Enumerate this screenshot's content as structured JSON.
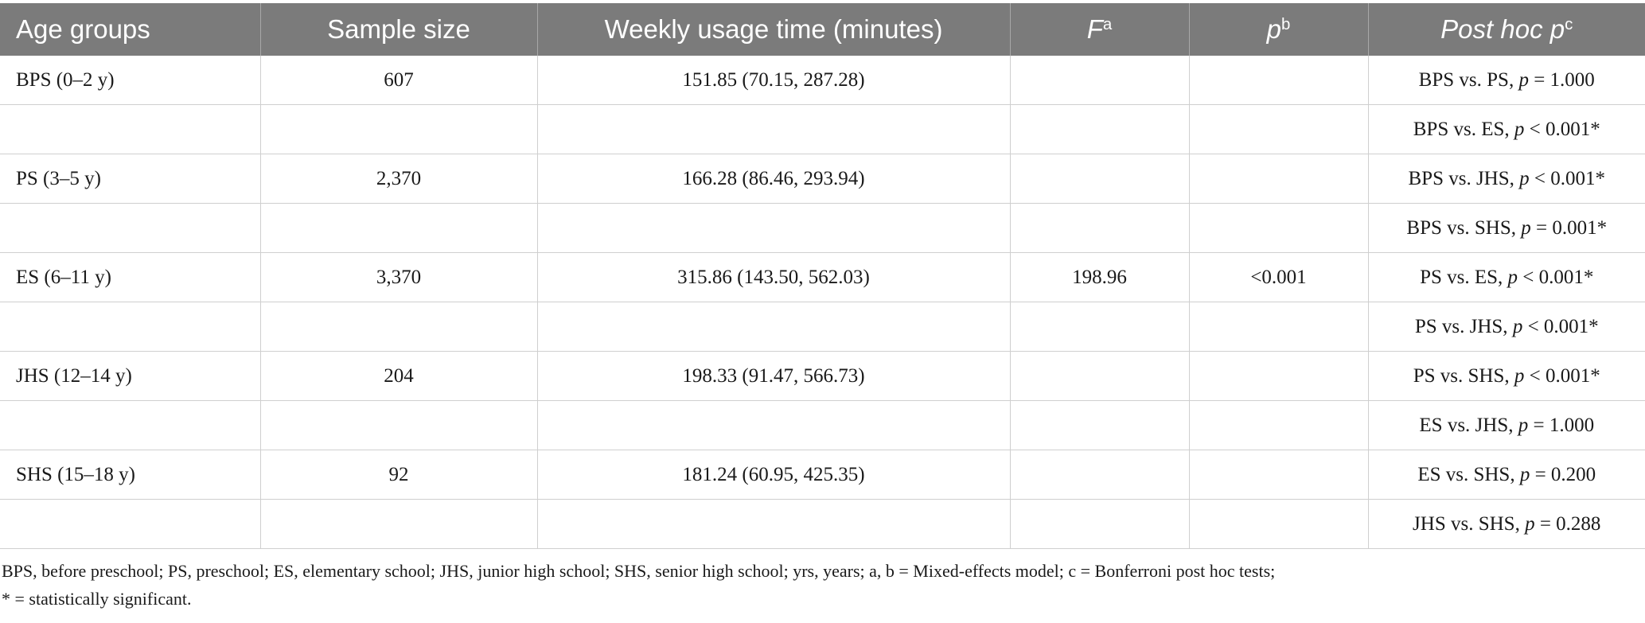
{
  "table": {
    "headers": [
      {
        "text": "Age groups",
        "italic": false,
        "sup": ""
      },
      {
        "text": "Sample size",
        "italic": false,
        "sup": ""
      },
      {
        "text": "Weekly usage time (minutes)",
        "italic": false,
        "sup": ""
      },
      {
        "text": "F",
        "italic": true,
        "sup": "a"
      },
      {
        "text": "p",
        "italic": true,
        "sup": "b"
      },
      {
        "text": "Post hoc p",
        "italic": true,
        "sup": "c"
      }
    ],
    "rows": [
      [
        "BPS (0–2 y)",
        "607",
        "151.85 (70.15, 287.28)",
        "",
        "",
        "BPS vs. PS, p = 1.000"
      ],
      [
        "",
        "",
        "",
        "",
        "",
        "BPS vs. ES, p < 0.001*"
      ],
      [
        "PS (3–5 y)",
        "2,370",
        "166.28 (86.46, 293.94)",
        "",
        "",
        "BPS vs. JHS, p < 0.001*"
      ],
      [
        "",
        "",
        "",
        "",
        "",
        "BPS vs. SHS, p = 0.001*"
      ],
      [
        "ES (6–11 y)",
        "3,370",
        "315.86 (143.50, 562.03)",
        "198.96",
        "<0.001",
        "PS vs. ES, p < 0.001*"
      ],
      [
        "",
        "",
        "",
        "",
        "",
        "PS vs. JHS, p < 0.001*"
      ],
      [
        "JHS (12–14 y)",
        "204",
        "198.33 (91.47, 566.73)",
        "",
        "",
        "PS vs. SHS, p < 0.001*"
      ],
      [
        "",
        "",
        "",
        "",
        "",
        "ES vs. JHS, p = 1.000"
      ],
      [
        "SHS (15–18 y)",
        "92",
        "181.24 (60.95, 425.35)",
        "",
        "",
        "ES vs. SHS, p = 0.200"
      ],
      [
        "",
        "",
        "",
        "",
        "",
        "JHS vs. SHS, p = 0.288"
      ]
    ]
  },
  "footnote": {
    "line1": "BPS, before preschool; PS, preschool; ES, elementary school; JHS, junior high school; SHS, senior high school; yrs, years; a, b = Mixed-effects model; c = Bonferroni post hoc tests;",
    "line2": "* = statistically significant."
  }
}
